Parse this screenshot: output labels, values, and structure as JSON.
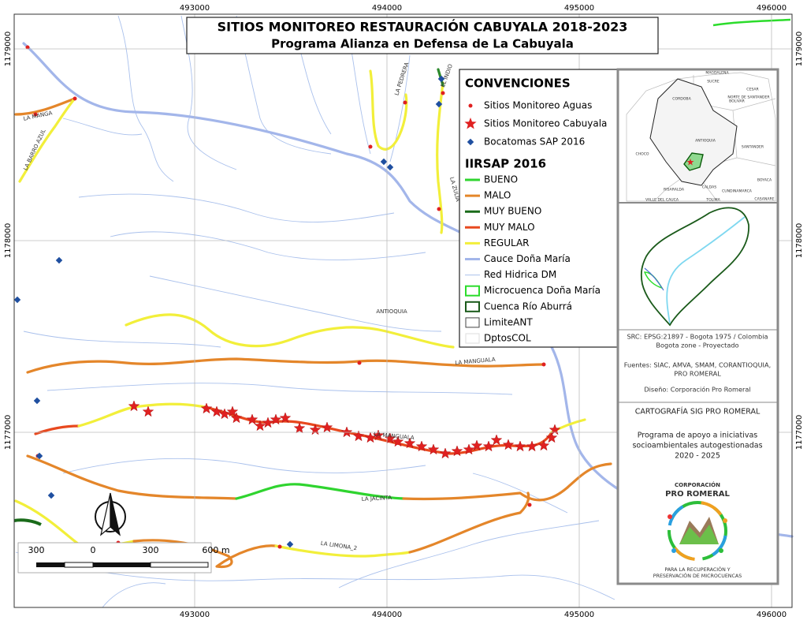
{
  "title": {
    "line1": "SITIOS MONITOREO RESTAURACIÓN CABUYALA 2018-2023",
    "line2": "Programa Alianza en Defensa de La Cabuyala"
  },
  "grid": {
    "xticks": [
      493000,
      494000,
      495000,
      496000
    ],
    "yticks": [
      1179000,
      1178000,
      1177000
    ]
  },
  "legend": {
    "heading1": "CONVENCIONES",
    "items1": [
      "Sitios Monitoreo Aguas",
      "Sitios Monitoreo Cabuyala",
      "Bocatomas SAP 2016"
    ],
    "heading2": "IIRSAP 2016",
    "items2": [
      "BUENO",
      "MALO",
      "MUY BUENO",
      "MUY MALO",
      "REGULAR",
      "Cauce Doña María",
      "Red Hidrica DM",
      "Microcuenca Doña María",
      "Cuenca Río Aburrá",
      "LimiteANT",
      "DptosCOL"
    ]
  },
  "stream_labels": [
    "LA MANGA",
    "LA BARRO AZUL",
    "LA PEDRERA",
    "EL INDIO",
    "LA ZULIA",
    "ANTIOQUIA",
    "LA MANGUALA",
    "LA JACINTA",
    "LA LIMONA_2",
    "LA MANGUALA"
  ],
  "scale_bar": [
    300,
    0,
    300,
    "600 m"
  ],
  "inset_labels": [
    "MAGDALENA",
    "CESAR",
    "SUCRE",
    "NORTE DE SANTANDER",
    "CORDOBA",
    "BOLIVAR",
    "ANTIOQUIA",
    "SANTANDER",
    "CHOCO",
    "BOYACA",
    "RISARALDA",
    "CALDAS",
    "CUNDINAMARCA",
    "CASANARE",
    "VALLE DEL CAUCA",
    "TOLIMA"
  ],
  "info": {
    "src": [
      "SRC: EPSG:21897 - Bogota 1975 / Colombia",
      "Bogota zone - Proyectado"
    ],
    "sources": [
      "Fuentes: SIAC, AMVA, SMAM, CORANTIOQUIA,",
      "PRO ROMERAL"
    ],
    "design": "Diseño: Corporación Pro Romeral",
    "cartography": "CARTOGRAFÍA SIG PRO ROMERAL",
    "program": [
      "Programa de apoyo a iniciativas",
      "socioambientales autogestionadas",
      "2020 - 2025"
    ]
  },
  "logo": {
    "line1": "CORPORACIÓN",
    "line2": "PRO ROMERAL",
    "tagline": [
      "PARA LA RECUPERACIÓN Y",
      "PRESERVACIÓN DE MICROCUENCAS"
    ]
  }
}
